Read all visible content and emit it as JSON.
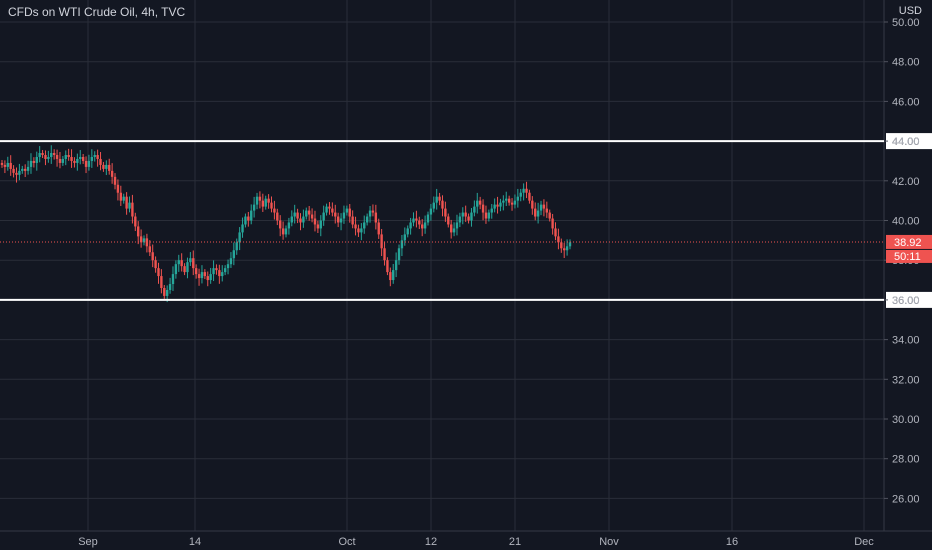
{
  "header": {
    "title": "CFDs on WTI Crude Oil, 4h, TVC",
    "currency": "USD"
  },
  "colors": {
    "background": "#131722",
    "grid": "#2a2e39",
    "up": "#26a69a",
    "down": "#ef5350",
    "axis_text": "#b2b5be",
    "hline": "#ffffff"
  },
  "chart_data": {
    "type": "candlestick",
    "title": "CFDs on WTI Crude Oil, 4h, TVC",
    "ylim": [
      25,
      51
    ],
    "y_ticks": [
      "26.00",
      "28.00",
      "30.00",
      "32.00",
      "34.00",
      "36.00",
      "38.00",
      "40.00",
      "42.00",
      "44.00",
      "46.00",
      "48.00",
      "50.00"
    ],
    "x_ticks": [
      "Sep",
      "14",
      "Oct",
      "12",
      "21",
      "Nov",
      "16",
      "Dec"
    ],
    "grid": true,
    "horizontal_lines": [
      {
        "value": 44.0,
        "label": "44.00"
      },
      {
        "value": 36.0,
        "label": "36.00"
      }
    ],
    "last_price": {
      "value": 38.92,
      "label": "38.92",
      "countdown": "50:11"
    },
    "closes": [
      42.8,
      42.7,
      42.9,
      42.6,
      42.4,
      42.3,
      42.5,
      42.6,
      42.5,
      42.7,
      43.0,
      42.9,
      43.2,
      43.4,
      43.3,
      43.1,
      43.2,
      43.4,
      43.3,
      43.1,
      42.9,
      43.1,
      43.3,
      43.2,
      43.0,
      42.9,
      43.1,
      43.2,
      43.0,
      42.7,
      43.0,
      43.2,
      43.3,
      43.1,
      42.8,
      42.6,
      42.8,
      42.5,
      42.2,
      41.8,
      41.4,
      41.0,
      41.2,
      40.6,
      40.9,
      40.2,
      39.7,
      39.2,
      38.9,
      39.1,
      38.7,
      38.4,
      38.0,
      37.6,
      37.2,
      36.6,
      36.2,
      36.5,
      36.8,
      37.3,
      37.8,
      38.0,
      37.7,
      37.4,
      37.9,
      38.1,
      37.6,
      37.3,
      37.1,
      37.4,
      37.2,
      37.0,
      37.3,
      37.6,
      37.5,
      37.2,
      37.4,
      37.6,
      37.8,
      38.1,
      38.5,
      38.9,
      39.4,
      39.8,
      40.2,
      40.0,
      40.5,
      40.8,
      41.2,
      41.0,
      40.7,
      41.1,
      40.9,
      40.6,
      40.4,
      40.0,
      39.6,
      39.3,
      39.6,
      39.9,
      40.2,
      40.4,
      40.1,
      39.9,
      40.2,
      40.5,
      40.3,
      40.1,
      39.8,
      39.6,
      40.0,
      40.4,
      40.7,
      40.6,
      40.4,
      40.2,
      39.9,
      40.1,
      40.4,
      40.6,
      40.2,
      39.8,
      39.6,
      39.4,
      39.6,
      39.9,
      40.2,
      40.5,
      40.4,
      39.9,
      39.3,
      38.6,
      38.0,
      37.4,
      37.0,
      37.5,
      38.0,
      38.6,
      39.0,
      39.3,
      39.6,
      39.9,
      40.1,
      40.0,
      39.8,
      39.6,
      39.9,
      40.3,
      40.6,
      40.9,
      41.2,
      41.0,
      40.6,
      40.2,
      39.8,
      39.4,
      39.6,
      39.9,
      40.2,
      40.4,
      40.2,
      40.0,
      40.4,
      40.7,
      41.0,
      40.8,
      40.4,
      40.1,
      40.4,
      40.6,
      40.8,
      40.7,
      40.9,
      41.0,
      41.1,
      40.9,
      40.8,
      41.0,
      41.2,
      41.4,
      41.6,
      41.4,
      41.0,
      40.6,
      40.2,
      40.5,
      40.8,
      40.6,
      40.4,
      40.1,
      39.6,
      39.2,
      38.9,
      38.6,
      38.5,
      38.7,
      38.9
    ]
  }
}
